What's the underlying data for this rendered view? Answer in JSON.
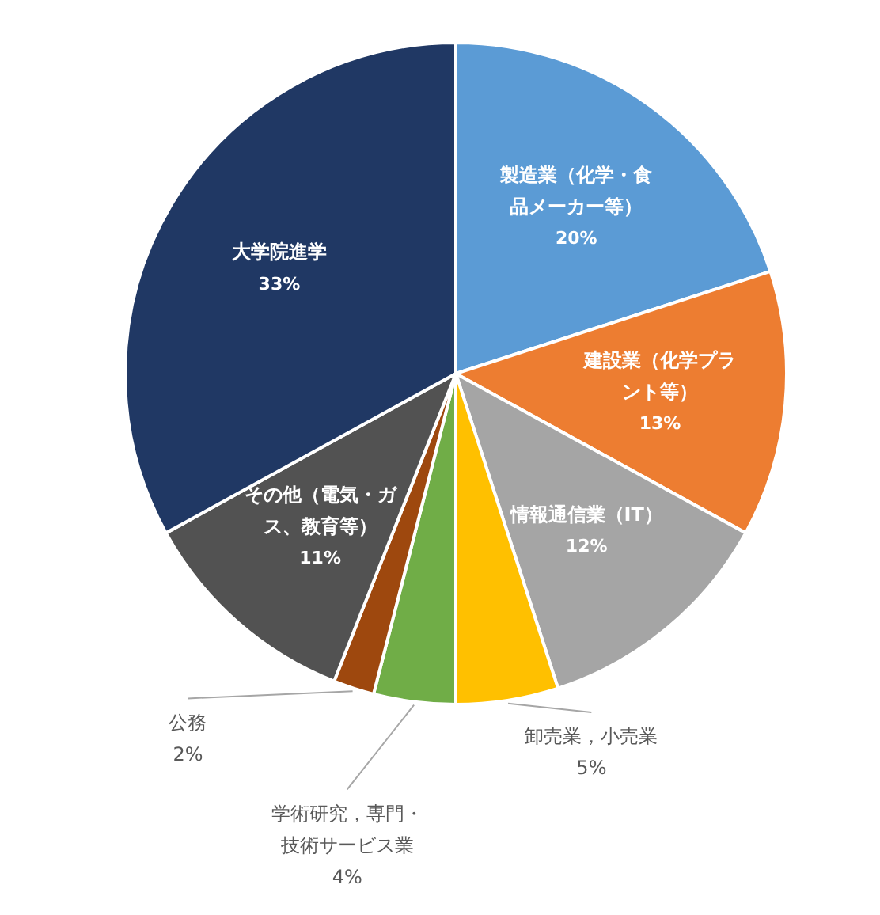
{
  "chart_data": {
    "type": "pie",
    "categories": [
      "製造業（化学・食品メーカー等）",
      "建設業（化学プラント等）",
      "情報通信業（IT）",
      "卸売業，小売業",
      "学術研究，専門・技術サービス業",
      "公務",
      "その他（電気・ガス、教育等）",
      "大学院進学"
    ],
    "values": [
      20,
      13,
      12,
      5,
      4,
      2,
      11,
      33
    ],
    "colors": [
      "#5b9bd5",
      "#ed7d31",
      "#a5a5a5",
      "#ffc000",
      "#70ad47",
      "#9e480e",
      "#525252",
      "#203864"
    ],
    "value_labels": [
      "20%",
      "13%",
      "12%",
      "5%",
      "4%",
      "2%",
      "11%",
      "33%"
    ],
    "legend": false
  }
}
